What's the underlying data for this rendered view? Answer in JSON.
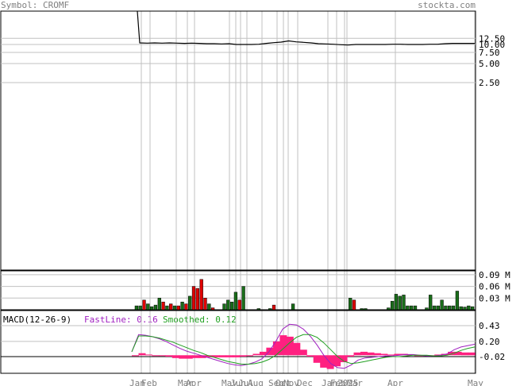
{
  "header": {
    "symbol": "Symbol: CROMF",
    "site": "stockta.com"
  },
  "macd_header": {
    "label": "MACD(12-26-9)",
    "fast_label": "FastLine: 0.16",
    "smooth_label": "Smoothed: 0.12"
  },
  "colors": {
    "price": "#000000",
    "up_bar": "#1a6e1a",
    "down_bar": "#e00000",
    "grid": "#c0c0c0",
    "macd_fast": "#a020c0",
    "macd_smooth": "#20a020",
    "histogram": "#ff2080",
    "text_gray": "#808080"
  },
  "chart_data": [
    {
      "type": "line",
      "title": "Price",
      "yscale": "log",
      "y_ticks": [
        "12.50",
        "10.00",
        "7.50",
        "5.00",
        "2.50"
      ],
      "y_tick_values": [
        12.5,
        10.0,
        7.5,
        5.0,
        2.5
      ],
      "x_labels": [
        "Jan",
        "Feb",
        "Mar",
        "Apr",
        "May",
        "Jun",
        "Jul",
        "Aug",
        "Sep",
        "Oct",
        "Nov",
        "Dec",
        "Jan",
        "Feb",
        "2025",
        "Mar",
        "Apr",
        "May"
      ],
      "series": [
        {
          "values": [
            60,
            10.6,
            10.5,
            10.6,
            10.5,
            10.6,
            10.5,
            10.4,
            10.5,
            10.4,
            10.3,
            10.3,
            10.2,
            10.3,
            10.0,
            10.0,
            10.0,
            10.1,
            10.4,
            10.7,
            10.9,
            11.4,
            11.0,
            10.8,
            10.6,
            10.3,
            10.2,
            10.1,
            9.9,
            9.8,
            10.0,
            10.0,
            10.0,
            10.0,
            10.0,
            10.1,
            10.1,
            10.0,
            10.0,
            10.0,
            10.1,
            10.1,
            10.3,
            10.4,
            10.4,
            10.4,
            10.4
          ]
        }
      ]
    },
    {
      "type": "bar",
      "title": "Volume",
      "y_ticks": [
        "0.09 M",
        "0.06 M",
        "0.03 M"
      ],
      "y_tick_values": [
        0.09,
        0.06,
        0.03
      ],
      "values": [
        0.01,
        0.01,
        0.025,
        0.015,
        0.008,
        0.012,
        0.03,
        0.02,
        0.01,
        0.015,
        0.01,
        0.01,
        0.02,
        0.015,
        0.035,
        0.06,
        0.055,
        0.078,
        0.03,
        0.015,
        0.005,
        0.0,
        0.0,
        0.015,
        0.025,
        0.02,
        0.045,
        0.025,
        0.06,
        0.0,
        0.0,
        0.0,
        0.003,
        0.0,
        0.0,
        0.003,
        0.012,
        0.0,
        0.0,
        0.0,
        0.0,
        0.015,
        0.0,
        0.0,
        0.0,
        0.0,
        0.0,
        0.0,
        0.0,
        0.0,
        0.0,
        0.0,
        0.0,
        0.0,
        0.0,
        0.0,
        0.03,
        0.025,
        0.0,
        0.003,
        0.003,
        0.0,
        0.0,
        0.0,
        0.0,
        0.0,
        0.005,
        0.022,
        0.04,
        0.035,
        0.038,
        0.01,
        0.01,
        0.01,
        0.0,
        0.0,
        0.005,
        0.038,
        0.01,
        0.01,
        0.025,
        0.01,
        0.01,
        0.01,
        0.048,
        0.008,
        0.007,
        0.01,
        0.008
      ],
      "directions": [
        1,
        1,
        0,
        1,
        1,
        1,
        1,
        0,
        1,
        0,
        1,
        0,
        1,
        0,
        1,
        0,
        0,
        0,
        0,
        1,
        0,
        0,
        0,
        1,
        1,
        1,
        1,
        0,
        1,
        0,
        0,
        0,
        1,
        0,
        0,
        1,
        0,
        0,
        0,
        0,
        0,
        1,
        0,
        0,
        0,
        0,
        0,
        0,
        0,
        0,
        0,
        0,
        0,
        0,
        0,
        0,
        1,
        0,
        0,
        1,
        1,
        0,
        0,
        0,
        0,
        0,
        1,
        1,
        1,
        1,
        1,
        1,
        1,
        1,
        0,
        0,
        1,
        1,
        1,
        1,
        1,
        1,
        1,
        1,
        1,
        1,
        1,
        1,
        1
      ]
    },
    {
      "type": "line",
      "title": "MACD(12-26-9)",
      "y_ticks": [
        "0.43",
        "0.20",
        "-0.02"
      ],
      "y_tick_values": [
        0.43,
        0.2,
        -0.02
      ],
      "series": [
        {
          "name": "FastLine",
          "values": [
            0.05,
            0.3,
            0.29,
            0.27,
            0.24,
            0.2,
            0.15,
            0.1,
            0.06,
            0.03,
            0.0,
            -0.03,
            -0.06,
            -0.09,
            -0.12,
            -0.14,
            -0.15,
            -0.13,
            -0.1,
            -0.05,
            0.05,
            0.2,
            0.38,
            0.45,
            0.44,
            0.38,
            0.28,
            0.15,
            0.0,
            -0.12,
            -0.18,
            -0.19,
            -0.14,
            -0.07,
            -0.04,
            -0.03,
            -0.02,
            -0.01,
            -0.01,
            0.0,
            0.01,
            0.01,
            0.0,
            -0.01,
            -0.01,
            0.0,
            0.02,
            0.08,
            0.12,
            0.14,
            0.16
          ]
        },
        {
          "name": "Smoothed",
          "values": [
            0.05,
            0.28,
            0.28,
            0.27,
            0.25,
            0.22,
            0.19,
            0.15,
            0.11,
            0.07,
            0.04,
            0.0,
            -0.03,
            -0.06,
            -0.09,
            -0.11,
            -0.13,
            -0.13,
            -0.12,
            -0.1,
            -0.06,
            0.0,
            0.09,
            0.18,
            0.26,
            0.3,
            0.3,
            0.26,
            0.18,
            0.08,
            -0.02,
            -0.09,
            -0.12,
            -0.11,
            -0.09,
            -0.07,
            -0.05,
            -0.03,
            -0.02,
            -0.02,
            -0.01,
            0.0,
            0.0,
            0.0,
            -0.01,
            -0.01,
            0.0,
            0.03,
            0.07,
            0.1,
            0.12
          ]
        }
      ],
      "histogram": [
        0.0,
        0.03,
        0.01,
        0.0,
        -0.01,
        -0.02,
        -0.04,
        -0.05,
        -0.05,
        -0.04,
        -0.04,
        -0.03,
        -0.03,
        -0.03,
        -0.03,
        -0.03,
        -0.02,
        0.0,
        0.02,
        0.05,
        0.11,
        0.2,
        0.29,
        0.27,
        0.18,
        0.08,
        -0.02,
        -0.11,
        -0.18,
        -0.2,
        -0.16,
        -0.1,
        -0.02,
        0.04,
        0.05,
        0.04,
        0.03,
        0.02,
        0.01,
        0.02,
        0.02,
        0.01,
        0.0,
        -0.01,
        0.0,
        0.01,
        0.02,
        0.05,
        0.05,
        0.04,
        0.04
      ]
    }
  ]
}
